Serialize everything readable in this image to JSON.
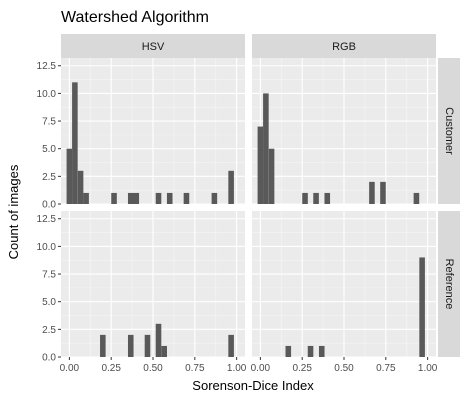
{
  "chart_data": {
    "type": "bar",
    "title": "Watershed Algorithm",
    "xlabel": "Sorenson-Dice Index",
    "ylabel": "Count of images",
    "xlim": [
      -0.05,
      1.05
    ],
    "ylim": [
      0,
      13.2
    ],
    "x_ticks": [
      "0.00",
      "0.25",
      "0.50",
      "0.75",
      "1.00"
    ],
    "y_ticks": [
      "0.0",
      "2.5",
      "5.0",
      "7.5",
      "10.0",
      "12.5"
    ],
    "columns": [
      "HSV",
      "RGB"
    ],
    "rows": [
      "Customer",
      "Reference"
    ],
    "bin_width": 0.0333,
    "bar_color": "#595959",
    "panel_bg": "#ebebeb",
    "strip_bg": "#d9d9d9",
    "grid": true,
    "panels": [
      {
        "col": "HSV",
        "row": "Customer",
        "bars": [
          {
            "x": 0.0,
            "y": 5
          },
          {
            "x": 0.033,
            "y": 11
          },
          {
            "x": 0.067,
            "y": 3
          },
          {
            "x": 0.1,
            "y": 1
          },
          {
            "x": 0.267,
            "y": 1
          },
          {
            "x": 0.367,
            "y": 1
          },
          {
            "x": 0.4,
            "y": 1
          },
          {
            "x": 0.533,
            "y": 1
          },
          {
            "x": 0.6,
            "y": 1
          },
          {
            "x": 0.7,
            "y": 1
          },
          {
            "x": 0.867,
            "y": 1
          },
          {
            "x": 0.967,
            "y": 3
          }
        ]
      },
      {
        "col": "RGB",
        "row": "Customer",
        "bars": [
          {
            "x": 0.0,
            "y": 7
          },
          {
            "x": 0.033,
            "y": 10
          },
          {
            "x": 0.067,
            "y": 5
          },
          {
            "x": 0.267,
            "y": 1
          },
          {
            "x": 0.333,
            "y": 1
          },
          {
            "x": 0.4,
            "y": 1
          },
          {
            "x": 0.667,
            "y": 2
          },
          {
            "x": 0.733,
            "y": 2
          },
          {
            "x": 0.933,
            "y": 1
          }
        ]
      },
      {
        "col": "HSV",
        "row": "Reference",
        "bars": [
          {
            "x": 0.2,
            "y": 2
          },
          {
            "x": 0.367,
            "y": 2
          },
          {
            "x": 0.467,
            "y": 2
          },
          {
            "x": 0.533,
            "y": 3
          },
          {
            "x": 0.567,
            "y": 1
          },
          {
            "x": 0.967,
            "y": 2
          }
        ]
      },
      {
        "col": "RGB",
        "row": "Reference",
        "bars": [
          {
            "x": 0.167,
            "y": 1
          },
          {
            "x": 0.3,
            "y": 1
          },
          {
            "x": 0.367,
            "y": 1
          },
          {
            "x": 0.967,
            "y": 9
          }
        ]
      }
    ]
  }
}
